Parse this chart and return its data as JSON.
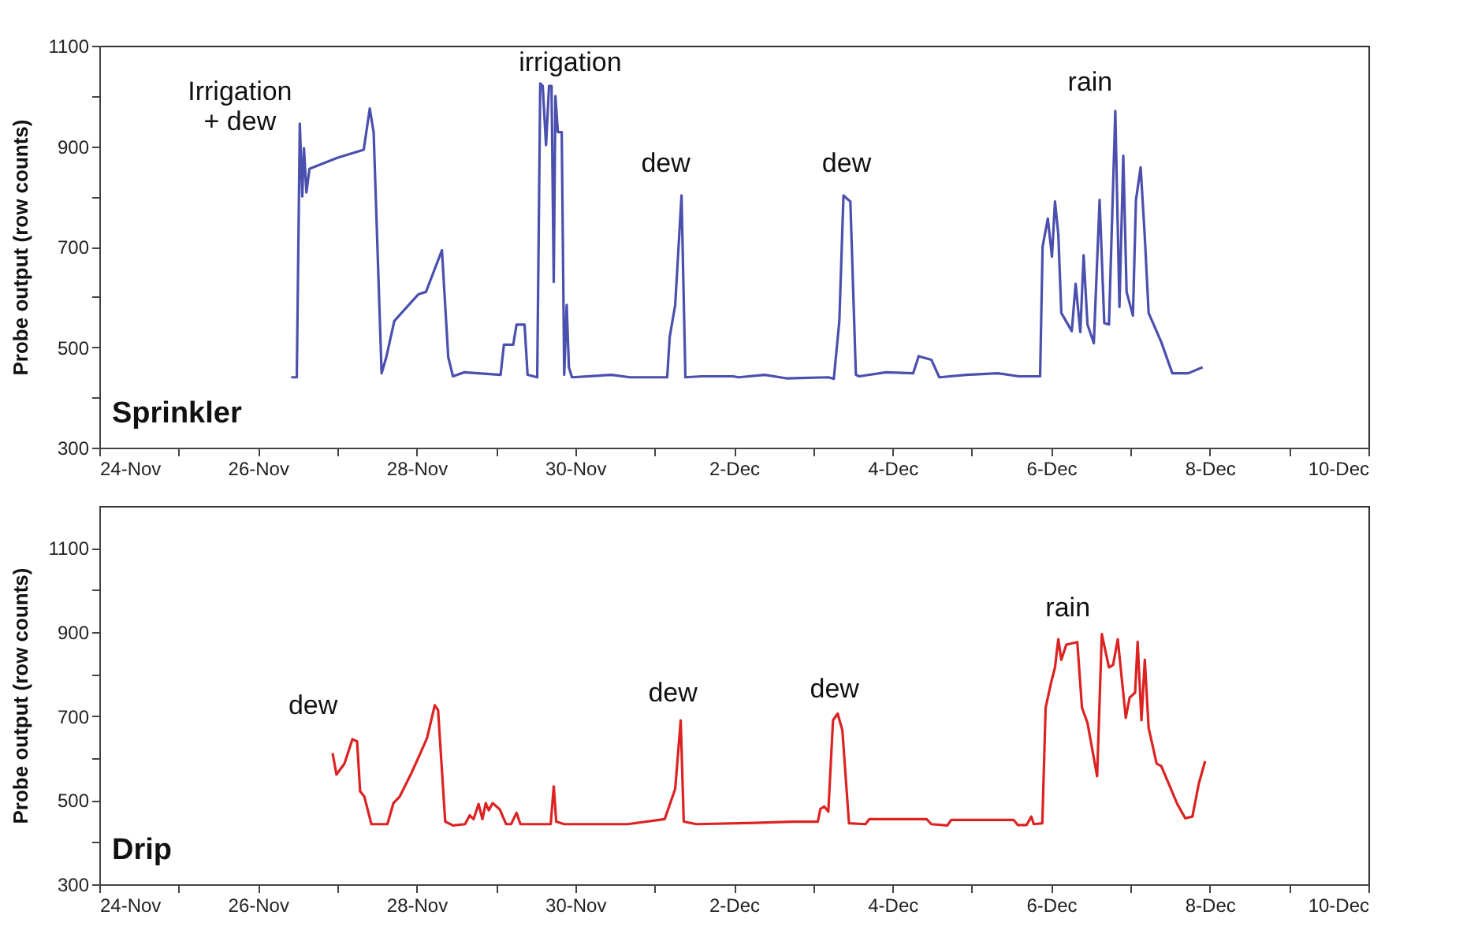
{
  "chart_data": [
    {
      "type": "line",
      "title": "Sprinkler",
      "ylabel": "Probe output (row counts)",
      "color": "#4b4fae",
      "x": [
        "--11-26T10:05",
        "--11-26T11:45",
        "--11-26T12:40",
        "--11-26T13:25",
        "--11-26T13:55",
        "--11-26T14:40",
        "--11-26T15:35",
        "--11-27T00:00",
        "--11-27T08:00",
        "--11-27T09:50",
        "--11-27T11:00",
        "--11-27T13:25",
        "--11-27T14:50",
        "--11-27T17:15",
        "--11-28T00:30",
        "--11-28T02:50",
        "--11-28T07:40",
        "--11-28T09:35",
        "--11-28T11:00",
        "--11-28T14:25",
        "--11-29T01:25",
        "--11-29T02:25",
        "--11-29T05:15",
        "--11-29T06:15",
        "--11-29T08:40",
        "--11-29T09:35",
        "--11-29T12:30",
        "--11-29T13:25",
        "--11-29T14:10",
        "--11-29T15:10",
        "--11-29T16:05",
        "--11-29T16:50",
        "--11-29T17:30",
        "--11-29T18:00",
        "--11-29T18:45",
        "--11-29T19:55",
        "--11-29T20:40",
        "--11-29T21:25",
        "--11-29T22:05",
        "--11-29T23:00",
        "--11-30T11:00",
        "--11-30T16:35",
        "--12-01T03:50",
        "--12-01T04:35",
        "--12-01T06:15",
        "--12-01T08:10",
        "--12-01T09:20",
        "--12-01T14:10",
        "--12-01T23:45",
        "--12-02T01:25",
        "--12-02T09:20",
        "--12-02T15:50",
        "--12-03T04:35",
        "--12-03T06:15",
        "--12-03T07:55",
        "--12-03T09:10",
        "--12-03T10:20",
        "--12-03T11:15",
        "--12-03T12:55",
        "--12-03T13:55",
        "--12-03T22:05",
        "--12-04T06:15",
        "--12-04T07:55",
        "--12-04T11:45",
        "--12-04T14:10",
        "--12-04T22:20",
        "--12-05T07:55",
        "--12-05T14:10",
        "--12-05T20:40",
        "--12-05T21:25",
        "--12-05T23:00",
        "--12-06T00:15",
        "--12-06T01:10",
        "--12-06T02:10",
        "--12-06T03:05",
        "--12-06T06:15",
        "--12-06T07:25",
        "--12-06T08:50",
        "--12-06T09:50",
        "--12-06T11:00",
        "--12-06T12:55",
        "--12-06T14:40",
        "--12-06T16:05",
        "--12-06T17:30",
        "--12-06T19:25",
        "--12-06T20:40",
        "--12-06T21:50",
        "--12-06T22:50",
        "--12-07T00:45",
        "--12-07T01:40",
        "--12-07T03:05",
        "--12-07T04:20",
        "--12-07T05:30",
        "--12-07T09:20",
        "--12-07T12:40",
        "--12-07T17:30",
        "--12-07T21:50"
      ],
      "values": [
        440,
        440,
        945,
        800,
        896,
        808,
        855,
        877,
        893,
        975,
        928,
        448,
        480,
        552,
        605,
        610,
        693,
        480,
        442,
        450,
        445,
        505,
        505,
        545,
        545,
        445,
        440,
        1025,
        1020,
        902,
        1020,
        1020,
        630,
        1000,
        928,
        928,
        445,
        584,
        460,
        440,
        445,
        440,
        440,
        520,
        584,
        802,
        440,
        442,
        442,
        440,
        445,
        438,
        440,
        437,
        552,
        802,
        795,
        790,
        445,
        442,
        450,
        448,
        482,
        475,
        440,
        445,
        448,
        442,
        442,
        700,
        756,
        680,
        790,
        725,
        568,
        532,
        626,
        530,
        683,
        545,
        508,
        793,
        548,
        545,
        970,
        580,
        881,
        610,
        563,
        793,
        858,
        720,
        568,
        510,
        448,
        448,
        460
      ],
      "xlim": [
        "--11-24",
        "--12-10"
      ],
      "xticks": [
        {
          "value": "--11-24",
          "label": "24-Nov"
        },
        {
          "value": "--11-25",
          "label": null
        },
        {
          "value": "--11-26",
          "label": "26-Nov"
        },
        {
          "value": "--11-27",
          "label": null
        },
        {
          "value": "--11-28",
          "label": "28-Nov"
        },
        {
          "value": "--11-29",
          "label": null
        },
        {
          "value": "--11-30",
          "label": "30-Nov"
        },
        {
          "value": "--12-01",
          "label": null
        },
        {
          "value": "--12-02",
          "label": "2-Dec"
        },
        {
          "value": "--12-03",
          "label": null
        },
        {
          "value": "--12-04",
          "label": "4-Dec"
        },
        {
          "value": "--12-05",
          "label": null
        },
        {
          "value": "--12-06",
          "label": "6-Dec"
        },
        {
          "value": "--12-07",
          "label": null
        },
        {
          "value": "--12-08",
          "label": "8-Dec"
        },
        {
          "value": "--12-09",
          "label": null
        },
        {
          "value": "--12-10",
          "label": "10-Dec"
        }
      ],
      "ylim": [
        300,
        1100
      ],
      "yticks": [
        300,
        {
          "value": 400,
          "label": null
        },
        500,
        {
          "value": 600,
          "label": null
        },
        700,
        {
          "value": 800,
          "label": null
        },
        900,
        {
          "value": 1000,
          "label": null
        },
        1100
      ],
      "annotations": [
        {
          "text": "Irrigation\n+ dew",
          "x": "--11-26T12:40",
          "y": 945
        },
        {
          "text": "irrigation",
          "x": "--11-29T13:25",
          "y": 1025
        },
        {
          "text": "dew",
          "x": "--12-01T08:10",
          "y": 802
        },
        {
          "text": "dew",
          "x": "--12-03T09:10",
          "y": 802
        },
        {
          "text": "rain",
          "x": "--12-06T19:25",
          "y": 970
        }
      ]
    },
    {
      "type": "line",
      "title": "Drip",
      "ylabel": "Probe output (row counts)",
      "color": "#dd2222",
      "x": [
        "--11-26T22:35",
        "--11-26T23:45",
        "--11-27T02:10",
        "--11-27T04:35",
        "--11-27T06:00",
        "--11-27T06:55",
        "--11-27T08:10",
        "--11-27T10:20",
        "--11-27T15:10",
        "--11-27T17:00",
        "--11-27T18:55",
        "--11-27T22:20",
        "--11-28T01:10",
        "--11-28T03:10",
        "--11-28T05:30",
        "--11-28T06:30",
        "--11-28T08:40",
        "--11-28T11:00",
        "--11-28T14:40",
        "--11-28T16:05",
        "--11-28T17:15",
        "--11-28T18:45",
        "--11-28T19:55",
        "--11-28T20:55",
        "--11-28T21:50",
        "--11-28T23:00",
        "--11-29T01:10",
        "--11-29T03:05",
        "--11-29T04:35",
        "--11-29T06:15",
        "--11-29T07:25",
        "--11-29T16:35",
        "--11-29T17:30",
        "--11-29T18:15",
        "--11-29T20:40",
        "--11-30T15:50",
        "--12-01T03:05",
        "--12-01T06:15",
        "--12-01T07:55",
        "--12-01T08:50",
        "--12-01T12:40",
        "--12-02T06:15",
        "--12-02T17:30",
        "--12-03T01:25",
        "--12-03T02:10",
        "--12-03T03:20",
        "--12-03T04:35",
        "--12-03T06:00",
        "--12-03T07:25",
        "--12-03T08:50",
        "--12-03T10:50",
        "--12-03T15:50",
        "--12-03T17:00",
        "--12-04T10:20",
        "--12-04T11:45",
        "--12-04T16:35",
        "--12-04T17:45",
        "--12-05T12:40",
        "--12-05T13:55",
        "--12-05T16:35",
        "--12-05T18:00",
        "--12-05T18:45",
        "--12-05T21:20",
        "--12-05T22:20",
        "--12-06T00:00",
        "--12-06T01:10",
        "--12-06T02:10",
        "--12-06T03:05",
        "--12-06T04:35",
        "--12-06T07:55",
        "--12-06T09:20",
        "--12-06T11:00",
        "--12-06T13:55",
        "--12-06T15:20",
        "--12-06T17:30",
        "--12-06T18:45",
        "--12-06T20:10",
        "--12-06T22:35",
        "--12-06T23:45",
        "--12-07T01:25",
        "--12-07T02:10",
        "--12-07T03:20",
        "--12-07T04:20",
        "--12-07T05:30",
        "--12-07T07:55",
        "--12-07T09:20",
        "--12-07T14:10",
        "--12-07T16:35",
        "--12-07T18:45",
        "--12-07T20:40",
        "--12-07T22:35"
      ],
      "values": [
        612,
        561,
        587,
        645,
        640,
        521,
        509,
        443,
        443,
        493,
        509,
        563,
        612,
        648,
        726,
        714,
        449,
        440,
        443,
        464,
        455,
        491,
        455,
        493,
        476,
        493,
        478,
        443,
        443,
        470,
        443,
        443,
        533,
        449,
        443,
        443,
        455,
        527,
        690,
        449,
        443,
        446,
        449,
        449,
        479,
        485,
        473,
        690,
        706,
        666,
        445,
        443,
        455,
        455,
        443,
        440,
        453,
        453,
        441,
        441,
        461,
        443,
        445,
        720,
        780,
        816,
        883,
        834,
        870,
        876,
        720,
        684,
        557,
        895,
        816,
        822,
        883,
        696,
        744,
        756,
        877,
        690,
        834,
        672,
        587,
        581,
        491,
        457,
        461,
        539,
        593
      ],
      "xlim": [
        "--11-24",
        "--12-10"
      ],
      "xticks": [
        {
          "value": "--11-24",
          "label": "24-Nov"
        },
        {
          "value": "--11-25",
          "label": null
        },
        {
          "value": "--11-26",
          "label": "26-Nov"
        },
        {
          "value": "--11-27",
          "label": null
        },
        {
          "value": "--11-28",
          "label": "28-Nov"
        },
        {
          "value": "--11-29",
          "label": null
        },
        {
          "value": "--11-30",
          "label": "30-Nov"
        },
        {
          "value": "--12-01",
          "label": null
        },
        {
          "value": "--12-02",
          "label": "2-Dec"
        },
        {
          "value": "--12-03",
          "label": null
        },
        {
          "value": "--12-04",
          "label": "4-Dec"
        },
        {
          "value": "--12-05",
          "label": null
        },
        {
          "value": "--12-06",
          "label": "6-Dec"
        },
        {
          "value": "--12-07",
          "label": null
        },
        {
          "value": "--12-08",
          "label": "8-Dec"
        },
        {
          "value": "--12-09",
          "label": null
        },
        {
          "value": "--12-10",
          "label": "10-Dec"
        }
      ],
      "ylim": [
        300,
        1200
      ],
      "yticks": [
        300,
        {
          "value": 400,
          "label": null
        },
        500,
        {
          "value": 600,
          "label": null
        },
        700,
        {
          "value": 800,
          "label": null
        },
        900,
        {
          "value": 1000,
          "label": null
        },
        1100
      ],
      "annotations": [
        {
          "text": "dew",
          "x": "--11-27T04:35",
          "y": 645
        },
        {
          "text": "dew",
          "x": "--12-01T07:55",
          "y": 690
        },
        {
          "text": "dew",
          "x": "--12-03T07:25",
          "y": 706
        },
        {
          "text": "rain",
          "x": "--12-06T04:35",
          "y": 870
        }
      ]
    }
  ]
}
